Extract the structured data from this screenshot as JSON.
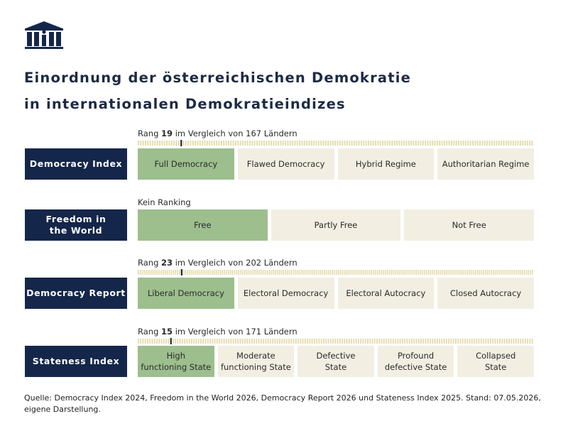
{
  "header": {
    "title_line1": "Einordnung der österreichischen Demokratie",
    "title_line2": "in internationalen Demokratieindizes",
    "logo_icon": "parliament-building-icon"
  },
  "colors": {
    "navy": "#14264a",
    "active_green": "#9dbe8d",
    "inactive_beige": "#f2eee2",
    "tick_yellow": "#e4d9a8",
    "marker": "#1c2a44"
  },
  "chart_data": {
    "type": "table",
    "indices": [
      {
        "name": "Democracy Index",
        "rank_text": {
          "prefix": "Rang ",
          "rank": "19",
          "suffix": " im Vergleich von 167 Ländern"
        },
        "rank": 19,
        "total": 167,
        "categories": [
          "Full Democracy",
          "Flawed Democracy",
          "Hybrid Regime",
          "Authoritarian Regime"
        ],
        "active": 0
      },
      {
        "name": "Freedom in\nthe World",
        "rank_text": {
          "prefix": "Kein Ranking",
          "rank": "",
          "suffix": ""
        },
        "rank": null,
        "total": null,
        "categories": [
          "Free",
          "Partly Free",
          "Not Free"
        ],
        "active": 0
      },
      {
        "name": "Democracy Report",
        "rank_text": {
          "prefix": "Rang ",
          "rank": "23",
          "suffix": " im Vergleich von 202 Ländern"
        },
        "rank": 23,
        "total": 202,
        "categories": [
          "Liberal Democracy",
          "Electoral Democracy",
          "Electoral Autocracy",
          "Closed Autocracy"
        ],
        "active": 0
      },
      {
        "name": "Stateness Index",
        "rank_text": {
          "prefix": "Rang ",
          "rank": "15",
          "suffix": " im Vergleich von 171 Ländern"
        },
        "rank": 15,
        "total": 171,
        "categories": [
          "High\nfunctioning State",
          "Moderate\nfunctioning State",
          "Defective\nState",
          "Profound\ndefective State",
          "Collapsed\nState"
        ],
        "active": 0
      }
    ]
  },
  "footer": {
    "source": "Quelle: Democracy Index 2024, Freedom in the World 2026, Democracy Report 2026 und Stateness Index 2025. Stand: 07.05.2026, eigene Darstellung."
  }
}
